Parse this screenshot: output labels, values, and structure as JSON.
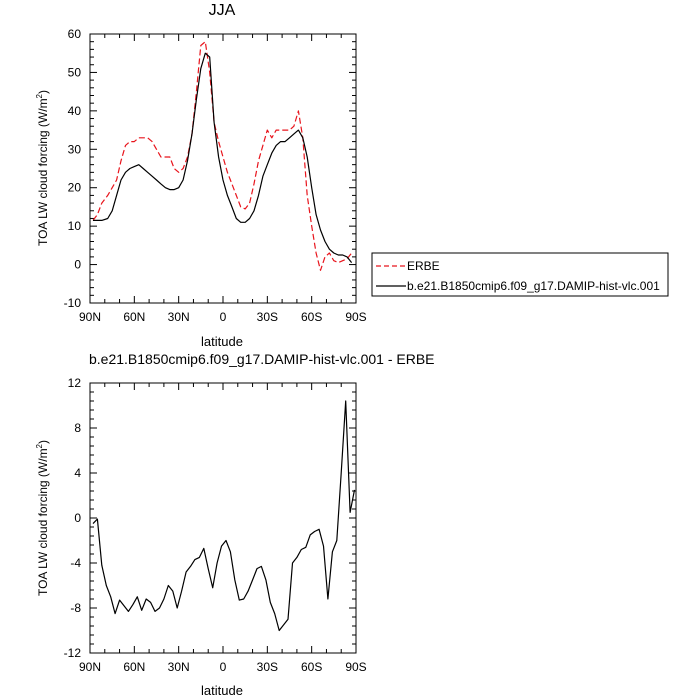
{
  "chart_data": [
    {
      "type": "line",
      "title": "JJA",
      "xlabel": "latitude",
      "ylabel": "TOA LW cloud forcing (W/m",
      "ylabel_sup": "2",
      "ylabel_end": ")",
      "xlim": [
        90,
        -90
      ],
      "ylim": [
        -10,
        60
      ],
      "x_ticks": [
        90,
        60,
        30,
        0,
        -30,
        -60,
        -90
      ],
      "x_ticklabels": [
        "90N",
        "60N",
        "30N",
        "0",
        "30S",
        "60S",
        "90S"
      ],
      "y_ticks": [
        -10,
        0,
        10,
        20,
        30,
        40,
        50,
        60
      ],
      "y_ticklabels": [
        "-10",
        "0",
        "10",
        "20",
        "30",
        "40",
        "50",
        "60"
      ],
      "legend_position": "right",
      "series": [
        {
          "name": "ERBE",
          "color": "#e8141c",
          "style": "dashed",
          "x": [
            88,
            85,
            82,
            78,
            75,
            72,
            69,
            66,
            63,
            60,
            57,
            54,
            51,
            48,
            45,
            42,
            39,
            36,
            33,
            30,
            27,
            24,
            21,
            18,
            15,
            12,
            9,
            6,
            3,
            0,
            -3,
            -6,
            -9,
            -12,
            -15,
            -18,
            -21,
            -24,
            -27,
            -30,
            -33,
            -36,
            -39,
            -42,
            -45,
            -48,
            -51,
            -54,
            -57,
            -60,
            -63,
            -66,
            -69,
            -72,
            -75,
            -78,
            -81,
            -84,
            -87
          ],
          "y": [
            11.5,
            13,
            16,
            18,
            20,
            22,
            27,
            31,
            32,
            32,
            33,
            33,
            33,
            32,
            30,
            28,
            28,
            28,
            25,
            24,
            25,
            28,
            34,
            45,
            57,
            58,
            50,
            37,
            32,
            28,
            24,
            21,
            18,
            15,
            14.5,
            16,
            21,
            27,
            31,
            35,
            33,
            35,
            35,
            35,
            35,
            36,
            40,
            33,
            18,
            10,
            3,
            -1.5,
            2,
            3,
            1,
            0.5,
            1,
            1.5,
            3
          ]
        },
        {
          "name": "b.e21.B1850cmip6.f09_g17.DAMIP-hist-vlc.001",
          "color": "#000000",
          "style": "solid",
          "x": [
            88,
            85,
            82,
            78,
            75,
            72,
            69,
            66,
            63,
            60,
            57,
            54,
            51,
            48,
            45,
            42,
            39,
            36,
            33,
            30,
            27,
            24,
            21,
            18,
            15,
            12,
            9,
            6,
            3,
            0,
            -3,
            -6,
            -9,
            -12,
            -15,
            -18,
            -21,
            -24,
            -27,
            -30,
            -33,
            -36,
            -39,
            -42,
            -45,
            -48,
            -51,
            -54,
            -57,
            -60,
            -63,
            -66,
            -69,
            -72,
            -75,
            -78,
            -81,
            -84,
            -87
          ],
          "y": [
            11.5,
            11.5,
            11.5,
            12,
            14,
            18,
            22,
            24,
            25,
            25.5,
            26,
            25,
            24,
            23,
            22,
            21,
            20,
            19.5,
            19.5,
            20,
            22,
            27,
            34,
            43,
            51,
            55,
            54,
            37,
            28,
            22,
            18,
            15,
            12,
            11,
            11,
            12,
            14,
            18,
            23,
            26,
            29,
            31,
            32,
            32,
            33,
            34,
            35,
            33,
            28,
            20,
            13,
            9,
            6,
            4,
            3,
            2.5,
            2.5,
            2,
            0.5
          ]
        }
      ]
    },
    {
      "type": "line",
      "title": "b.e21.B1850cmip6.f09_g17.DAMIP-hist-vlc.001 - ERBE",
      "xlabel": "latitude",
      "ylabel": "TOA LW cloud forcing (W/m",
      "ylabel_sup": "2",
      "ylabel_end": ")",
      "xlim": [
        90,
        -90
      ],
      "ylim": [
        -12,
        12
      ],
      "x_ticks": [
        90,
        60,
        30,
        0,
        -30,
        -60,
        -90
      ],
      "x_ticklabels": [
        "90N",
        "60N",
        "30N",
        "0",
        "30S",
        "60S",
        "90S"
      ],
      "y_ticks": [
        -12,
        -8,
        -4,
        0,
        4,
        8,
        12
      ],
      "y_ticklabels": [
        "-12",
        "-8",
        "-4",
        "0",
        "4",
        "8",
        "12"
      ],
      "series": [
        {
          "color": "#000000",
          "style": "solid",
          "x": [
            88,
            85,
            82,
            79,
            76,
            73,
            70,
            67,
            64,
            61,
            58,
            55,
            52,
            49,
            46,
            43,
            40,
            37,
            34,
            31,
            28,
            25,
            22,
            19,
            16,
            13,
            10,
            7,
            4,
            1,
            -2,
            -5,
            -8,
            -11,
            -14,
            -17,
            -20,
            -23,
            -26,
            -29,
            -32,
            -35,
            -38,
            -41,
            -44,
            -47,
            -50,
            -53,
            -56,
            -59,
            -62,
            -65,
            -68,
            -71,
            -74,
            -77,
            -80,
            -83,
            -86,
            -89
          ],
          "y": [
            -0.5,
            -0.1,
            -4.2,
            -6,
            -7,
            -8.5,
            -7.3,
            -7.8,
            -8.3,
            -7.7,
            -7,
            -8.2,
            -7.2,
            -7.5,
            -8.3,
            -8,
            -7.2,
            -6,
            -6.5,
            -8,
            -6.5,
            -4.8,
            -4.3,
            -3.7,
            -3.5,
            -2.7,
            -4.5,
            -6.2,
            -4,
            -2.5,
            -2,
            -3,
            -5.5,
            -7.3,
            -7.2,
            -6.5,
            -5.5,
            -4.5,
            -4.3,
            -5.5,
            -7.5,
            -8.5,
            -10,
            -9.5,
            -9,
            -4,
            -3.5,
            -2.8,
            -2.6,
            -1.5,
            -1.2,
            -1,
            -2.5,
            -7.2,
            -3,
            -2,
            4,
            10.4,
            0.5,
            2.5
          ]
        }
      ]
    }
  ]
}
